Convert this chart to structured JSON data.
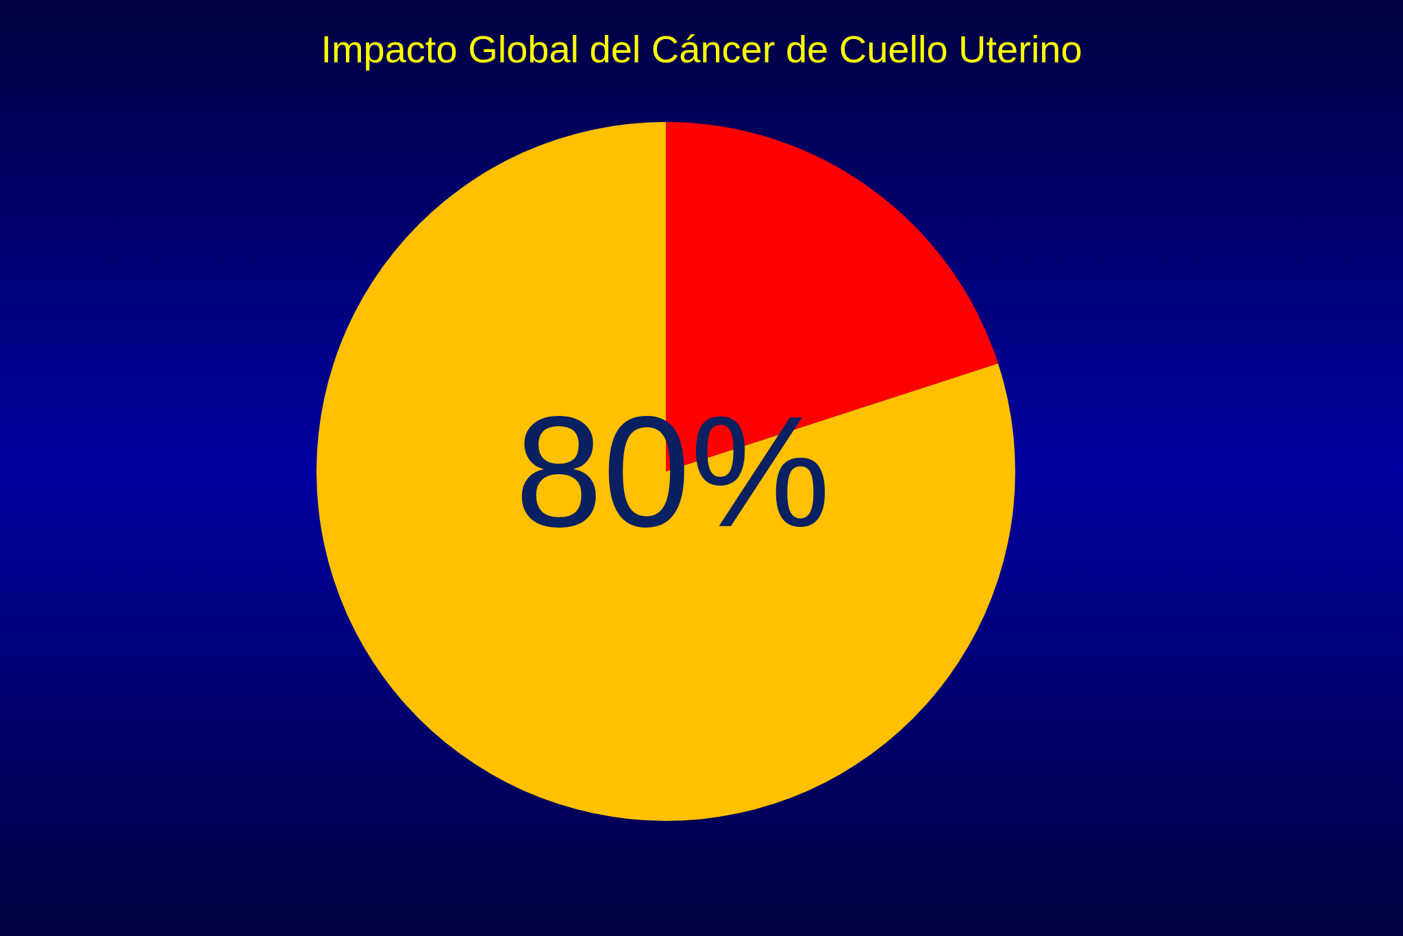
{
  "chart_data": {
    "type": "pie",
    "title": "Impacto Global del Cáncer de Cuello Uterino",
    "categories": [
      null,
      null
    ],
    "values": [
      20,
      80
    ],
    "colors": [
      "#ff0000",
      "#ffc000"
    ],
    "value_labels": [
      null,
      "80%"
    ]
  }
}
